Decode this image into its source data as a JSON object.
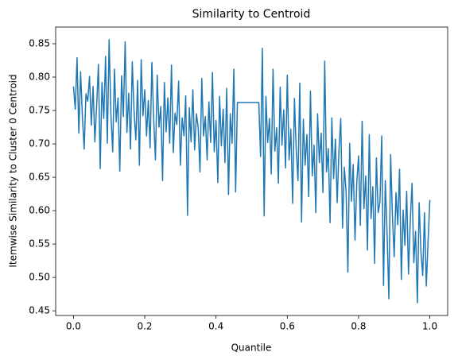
{
  "chart_data": {
    "type": "line",
    "title": "Similarity to Centroid",
    "xlabel": "Quantile",
    "ylabel": "Itemwise Similarity to Cluster 0 Centroid",
    "x": [
      0,
      0.005,
      0.01,
      0.015,
      0.02,
      0.025,
      0.03,
      0.035,
      0.04,
      0.045,
      0.05,
      0.055,
      0.06,
      0.065,
      0.07,
      0.075,
      0.08,
      0.085,
      0.09,
      0.095,
      0.1,
      0.105,
      0.11,
      0.115,
      0.12,
      0.125,
      0.13,
      0.135,
      0.14,
      0.145,
      0.15,
      0.155,
      0.16,
      0.165,
      0.17,
      0.175,
      0.18,
      0.185,
      0.19,
      0.195,
      0.2,
      0.205,
      0.21,
      0.215,
      0.22,
      0.225,
      0.23,
      0.235,
      0.24,
      0.245,
      0.25,
      0.255,
      0.26,
      0.265,
      0.27,
      0.275,
      0.28,
      0.285,
      0.29,
      0.295,
      0.3,
      0.305,
      0.31,
      0.315,
      0.32,
      0.325,
      0.33,
      0.335,
      0.34,
      0.345,
      0.35,
      0.355,
      0.36,
      0.365,
      0.37,
      0.375,
      0.38,
      0.385,
      0.39,
      0.395,
      0.4,
      0.405,
      0.41,
      0.415,
      0.42,
      0.425,
      0.43,
      0.435,
      0.44,
      0.445,
      0.45,
      0.455,
      0.46,
      0.465,
      0.47,
      0.475,
      0.48,
      0.485,
      0.49,
      0.495,
      0.5,
      0.505,
      0.51,
      0.515,
      0.52,
      0.525,
      0.53,
      0.535,
      0.54,
      0.545,
      0.55,
      0.555,
      0.56,
      0.565,
      0.57,
      0.575,
      0.58,
      0.585,
      0.59,
      0.595,
      0.6,
      0.605,
      0.61,
      0.615,
      0.62,
      0.625,
      0.63,
      0.635,
      0.64,
      0.645,
      0.65,
      0.655,
      0.66,
      0.665,
      0.67,
      0.675,
      0.68,
      0.685,
      0.69,
      0.695,
      0.7,
      0.705,
      0.71,
      0.715,
      0.72,
      0.725,
      0.73,
      0.735,
      0.74,
      0.745,
      0.75,
      0.755,
      0.76,
      0.765,
      0.77,
      0.775,
      0.78,
      0.785,
      0.79,
      0.795,
      0.8,
      0.805,
      0.81,
      0.815,
      0.82,
      0.825,
      0.83,
      0.835,
      0.84,
      0.845,
      0.85,
      0.855,
      0.86,
      0.865,
      0.87,
      0.875,
      0.88,
      0.885,
      0.89,
      0.895,
      0.9,
      0.905,
      0.91,
      0.915,
      0.92,
      0.925,
      0.93,
      0.935,
      0.94,
      0.945,
      0.95,
      0.955,
      0.96,
      0.965,
      0.97,
      0.975,
      0.98,
      0.985,
      0.99,
      0.995,
      1
    ],
    "series": [
      {
        "name": "similarity",
        "color": "#1f77b4",
        "values": [
          0.786,
          0.752,
          0.829,
          0.716,
          0.808,
          0.741,
          0.692,
          0.775,
          0.764,
          0.801,
          0.728,
          0.786,
          0.703,
          0.757,
          0.819,
          0.663,
          0.792,
          0.738,
          0.831,
          0.701,
          0.856,
          0.745,
          0.688,
          0.812,
          0.733,
          0.769,
          0.659,
          0.802,
          0.741,
          0.853,
          0.717,
          0.776,
          0.692,
          0.823,
          0.748,
          0.706,
          0.795,
          0.668,
          0.826,
          0.742,
          0.781,
          0.712,
          0.765,
          0.694,
          0.822,
          0.738,
          0.676,
          0.803,
          0.725,
          0.756,
          0.645,
          0.792,
          0.718,
          0.769,
          0.701,
          0.818,
          0.687,
          0.746,
          0.729,
          0.794,
          0.668,
          0.739,
          0.712,
          0.772,
          0.593,
          0.754,
          0.703,
          0.781,
          0.691,
          0.745,
          0.724,
          0.658,
          0.798,
          0.712,
          0.741,
          0.676,
          0.763,
          0.702,
          0.807,
          0.688,
          0.735,
          0.642,
          0.771,
          0.697,
          0.752,
          0.672,
          0.783,
          0.624,
          0.745,
          0.701,
          0.812,
          0.628,
          0.762,
          0.762,
          0.762,
          0.762,
          0.762,
          0.762,
          0.762,
          0.762,
          0.762,
          0.762,
          0.762,
          0.762,
          0.762,
          0.681,
          0.843,
          0.592,
          0.771,
          0.702,
          0.738,
          0.655,
          0.812,
          0.689,
          0.724,
          0.641,
          0.785,
          0.698,
          0.751,
          0.664,
          0.803,
          0.676,
          0.722,
          0.611,
          0.768,
          0.692,
          0.645,
          0.791,
          0.583,
          0.737,
          0.668,
          0.714,
          0.621,
          0.779,
          0.652,
          0.698,
          0.597,
          0.745,
          0.672,
          0.716,
          0.627,
          0.824,
          0.658,
          0.693,
          0.582,
          0.739,
          0.648,
          0.707,
          0.612,
          0.691,
          0.738,
          0.574,
          0.665,
          0.629,
          0.508,
          0.701,
          0.614,
          0.669,
          0.556,
          0.643,
          0.682,
          0.578,
          0.734,
          0.603,
          0.652,
          0.541,
          0.714,
          0.588,
          0.636,
          0.521,
          0.679,
          0.597,
          0.613,
          0.712,
          0.488,
          0.645,
          0.566,
          0.468,
          0.684,
          0.592,
          0.531,
          0.627,
          0.579,
          0.662,
          0.497,
          0.601,
          0.548,
          0.629,
          0.505,
          0.583,
          0.641,
          0.522,
          0.569,
          0.462,
          0.612,
          0.538,
          0.503,
          0.597,
          0.487,
          0.553,
          0.616
        ]
      }
    ],
    "xlim": [
      -0.05,
      1.05
    ],
    "xticks": [
      {
        "value": 0,
        "label": "0.0"
      },
      0.2,
      0.4,
      0.6,
      0.8,
      {
        "value": 1,
        "label": "1.0"
      }
    ],
    "ylim": [
      0.443,
      0.875
    ],
    "yticks": [
      0.45,
      {
        "value": 0.5,
        "label": "0.50"
      },
      0.55,
      {
        "value": 0.6,
        "label": "0.60"
      },
      0.65,
      {
        "value": 0.7,
        "label": "0.70"
      },
      0.75,
      {
        "value": 0.8,
        "label": "0.80"
      },
      0.85
    ],
    "grid": false
  }
}
